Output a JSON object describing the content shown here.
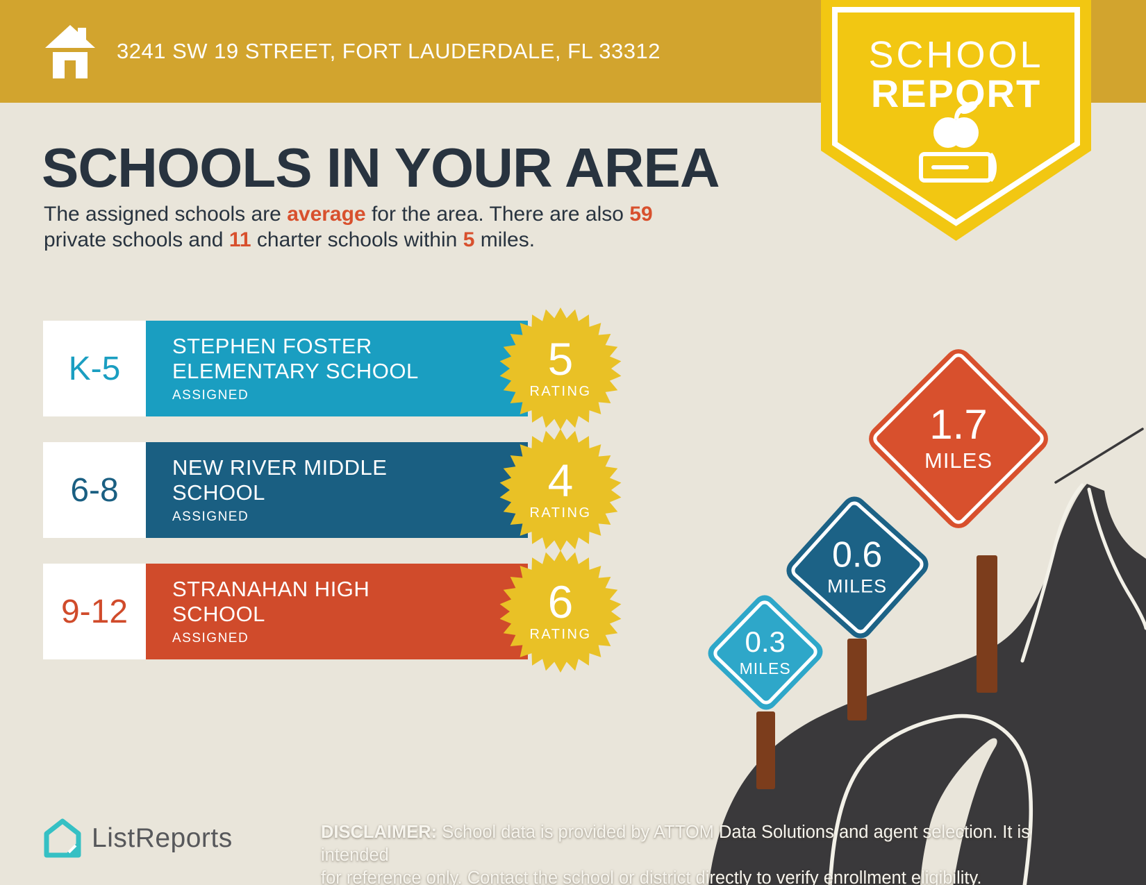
{
  "header": {
    "address": "3241 SW 19 STREET, FORT LAUDERDALE, FL 33312"
  },
  "badge": {
    "line1": "SCHOOL",
    "line2": "REPORT",
    "icon": "apple-on-book-icon"
  },
  "main": {
    "title": "SCHOOLS IN YOUR AREA",
    "subtitle_segments": [
      {
        "t": "The assigned schools are "
      },
      {
        "t": "average",
        "hl": true
      },
      {
        "t": " for the area. There are also "
      },
      {
        "t": "59",
        "hl": true
      },
      {
        "br": true
      },
      {
        "t": "private schools and "
      },
      {
        "t": "11",
        "hl": true
      },
      {
        "t": " charter schools within "
      },
      {
        "t": "5",
        "hl": true
      },
      {
        "t": " miles."
      }
    ]
  },
  "schools": [
    {
      "grade": "K-5",
      "name": "STEPHEN FOSTER\nELEMENTARY SCHOOL",
      "status": "ASSIGNED",
      "rating": "5",
      "rating_label": "RATING",
      "color": "#1A9EC1"
    },
    {
      "grade": "6-8",
      "name": "NEW RIVER MIDDLE\nSCHOOL",
      "status": "ASSIGNED",
      "rating": "4",
      "rating_label": "RATING",
      "color": "#1A5F82"
    },
    {
      "grade": "9-12",
      "name": "STRANAHAN HIGH\nSCHOOL",
      "status": "ASSIGNED",
      "rating": "6",
      "rating_label": "RATING",
      "color": "#D04B2B"
    }
  ],
  "signs": [
    {
      "distance": "0.3",
      "unit": "MILES",
      "color": "#2EA7C9"
    },
    {
      "distance": "0.6",
      "unit": "MILES",
      "color": "#1C6286"
    },
    {
      "distance": "1.7",
      "unit": "MILES",
      "color": "#D8502D"
    }
  ],
  "footer": {
    "brand": "ListReports",
    "disclaimer_label": "DISCLAIMER:",
    "disclaimer_line1": " School data is provided by ATTOM Data Solutions and agent selection. It is intended",
    "disclaimer_line2": "for reference only. Contact the school or district directly to verify enrollment eligibility."
  },
  "colors": {
    "background_beige": "#E9E5DA",
    "header_gold": "#D2A42E",
    "ribbon_yellow": "#F2C712",
    "starburst_yellow": "#E9C126",
    "title_navy": "#28333F",
    "accent_red": "#D8502D",
    "elementary_teal": "#1A9EC1",
    "middle_blue": "#1A5F82",
    "high_red": "#D04B2B",
    "sign_light_blue": "#2EA7C9",
    "sign_dark_blue": "#1C6286",
    "sign_red": "#D8502D",
    "road_charcoal": "#3A393B",
    "post_brown": "#7C3D1C",
    "logo_teal": "#35C0C4",
    "brand_gray": "#57585B"
  }
}
